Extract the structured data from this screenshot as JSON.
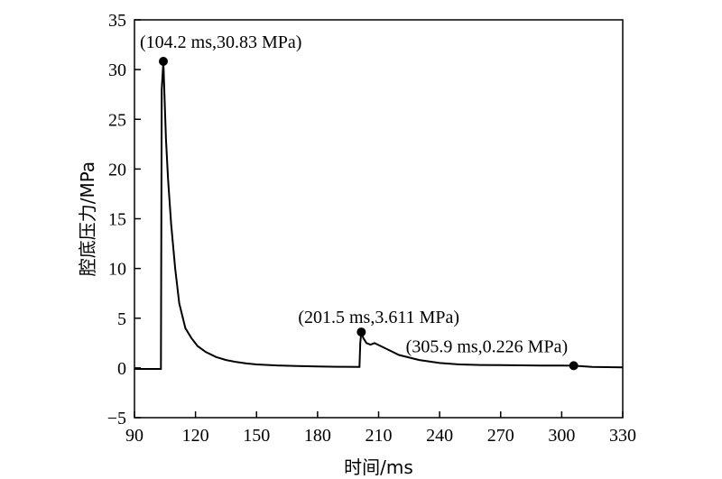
{
  "chart_data": {
    "type": "line",
    "xlabel": "时间/ms",
    "ylabel": "腔底压力/MPa",
    "xlim": [
      90,
      330
    ],
    "ylim": [
      -5,
      35
    ],
    "xticks": [
      "90",
      "120",
      "150",
      "180",
      "210",
      "240",
      "270",
      "300",
      "330"
    ],
    "yticks": [
      "−5",
      "0",
      "5",
      "10",
      "15",
      "20",
      "25",
      "30",
      "35"
    ],
    "grid": false,
    "series": [
      {
        "x": [
          90,
          103,
          103.4,
          104.2,
          104.8,
          105.5,
          106.5,
          108,
          110,
          112,
          115,
          118,
          121,
          125,
          130,
          135,
          140,
          145,
          150,
          160,
          170,
          180,
          190,
          200,
          200.6,
          201.0,
          201.5,
          202.5,
          204,
          206,
          208,
          210,
          215,
          220,
          230,
          240,
          250,
          260,
          270,
          280,
          290,
          300,
          305.9,
          315,
          330
        ],
        "y": [
          -0.1,
          -0.1,
          28.0,
          30.83,
          27.0,
          23.0,
          19.0,
          14.5,
          10.0,
          6.5,
          4.0,
          3.0,
          2.2,
          1.6,
          1.1,
          0.8,
          0.6,
          0.45,
          0.35,
          0.25,
          0.2,
          0.15,
          0.12,
          0.1,
          0.1,
          2.5,
          3.611,
          3.0,
          2.5,
          2.35,
          2.5,
          2.3,
          1.8,
          1.3,
          0.8,
          0.5,
          0.35,
          0.3,
          0.28,
          0.26,
          0.24,
          0.23,
          0.226,
          0.1,
          0.05
        ]
      }
    ],
    "markers": [
      {
        "x": 104.2,
        "y": 30.83,
        "label": "(104.2 ms,30.83 MPa)"
      },
      {
        "x": 201.5,
        "y": 3.611,
        "label": "(201.5 ms,3.611 MPa)"
      },
      {
        "x": 305.9,
        "y": 0.226,
        "label": "(305.9 ms,0.226 MPa)"
      }
    ]
  }
}
